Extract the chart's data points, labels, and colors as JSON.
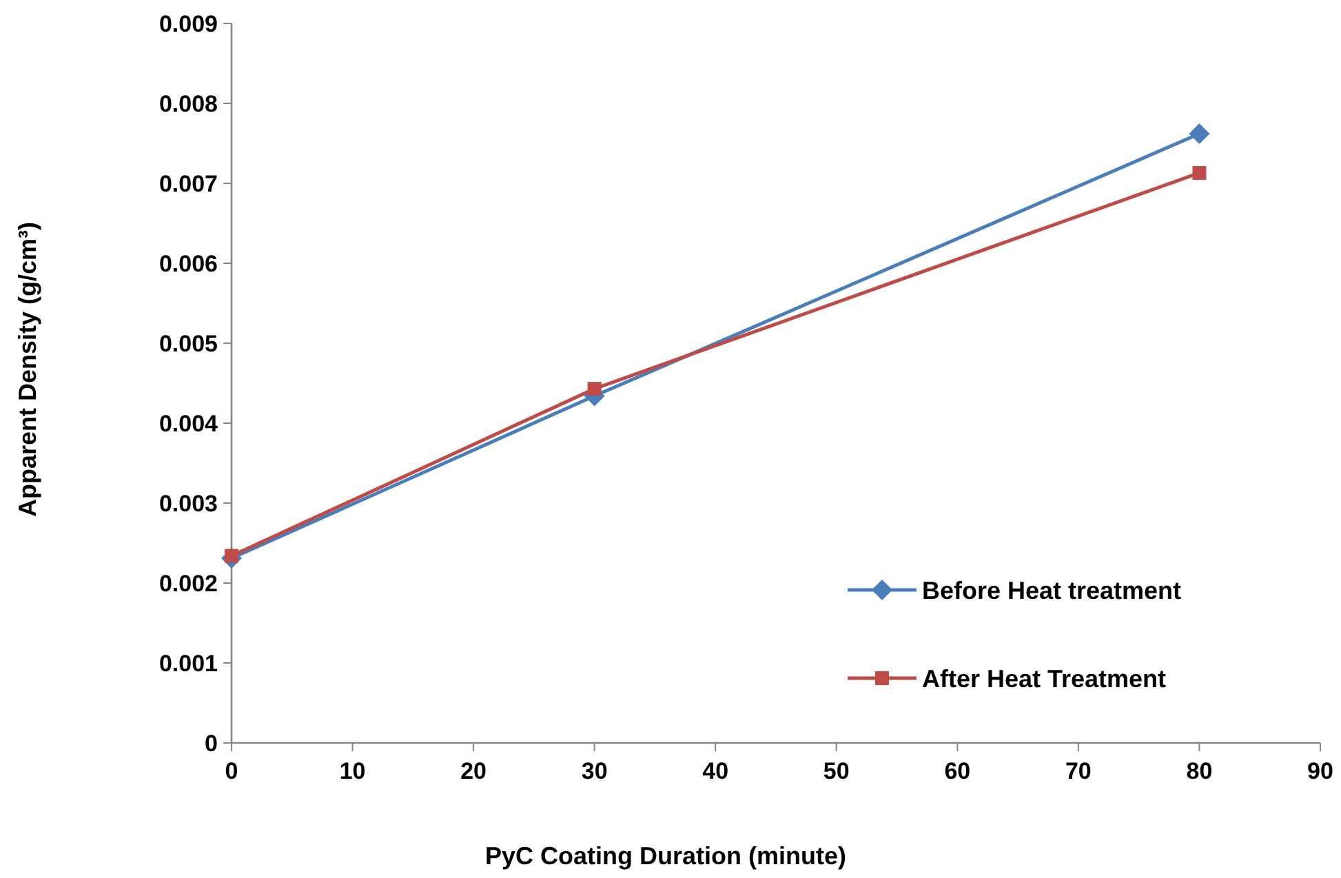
{
  "chart_data": {
    "type": "line",
    "xlabel": "PyC Coating Duration (minute)",
    "ylabel": "Apparent Density (g/cm³)",
    "x": [
      0,
      30,
      80
    ],
    "series": [
      {
        "name": "Before Heat treatment",
        "color": "#4a7ebb",
        "marker": "diamond",
        "values": [
          0.00231,
          0.00434,
          0.00762
        ]
      },
      {
        "name": "After Heat Treatment",
        "color": "#be4b48",
        "marker": "square",
        "values": [
          0.00234,
          0.00443,
          0.00713
        ]
      }
    ],
    "xlim": [
      0,
      90
    ],
    "xticks": [
      0,
      10,
      20,
      30,
      40,
      50,
      60,
      70,
      80,
      90
    ],
    "ylim": [
      0,
      0.009
    ],
    "yticks": [
      0,
      0.001,
      0.002,
      0.003,
      0.004,
      0.005,
      0.006,
      0.007,
      0.008,
      0.009
    ],
    "grid": false,
    "legend": "right",
    "line_style": "solid"
  }
}
